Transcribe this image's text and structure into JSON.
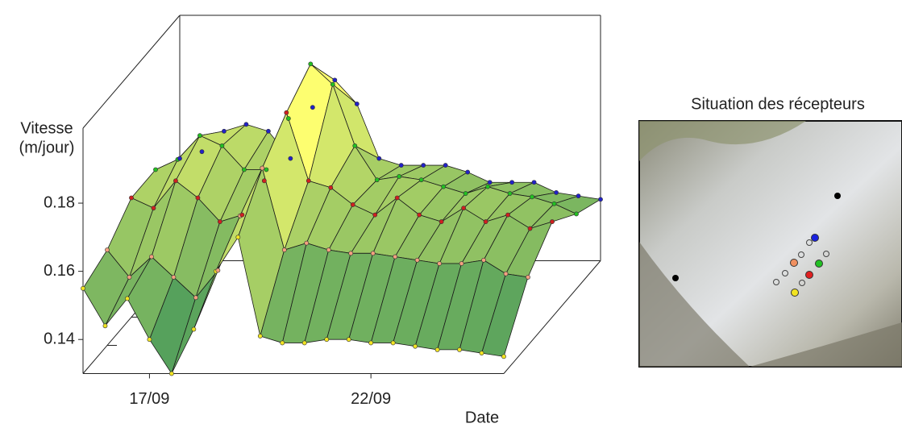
{
  "chart_data": [
    {
      "type": "surface3d",
      "ylabel": [
        "Vitesse",
        "(m/jour)"
      ],
      "xlabel": "Date",
      "categories": [
        null,
        null,
        null,
        "17/09",
        null,
        null,
        null,
        null,
        null,
        null,
        null,
        null,
        null,
        "22/09",
        null,
        null,
        null,
        null,
        null,
        null
      ],
      "ylim": [
        0.13,
        0.202
      ],
      "yticks": [
        0.14,
        0.16,
        0.18
      ],
      "colormap": [
        "#2e8b57",
        "#ffff70"
      ],
      "series": [
        {
          "color": "#f2e422",
          "values": [
            0.155,
            0.144,
            0.152,
            0.14,
            0.13,
            0.143,
            0.16,
            0.17,
            0.141,
            0.139,
            0.139,
            0.14,
            0.14,
            0.139,
            0.139,
            0.138,
            0.137,
            0.137,
            0.136,
            0.135
          ]
        },
        {
          "color": "#f4a080",
          "values": [
            0.158,
            0.15,
            0.156,
            0.15,
            0.144,
            0.152,
            0.168,
            0.182,
            0.158,
            0.16,
            0.158,
            0.157,
            0.157,
            0.156,
            0.155,
            0.154,
            0.154,
            0.155,
            0.151,
            0.15
          ]
        },
        {
          "color": "#d02020",
          "values": [
            0.165,
            0.162,
            0.17,
            0.165,
            0.158,
            0.16,
            0.17,
            0.19,
            0.17,
            0.168,
            0.163,
            0.16,
            0.165,
            0.16,
            0.158,
            0.162,
            0.158,
            0.16,
            0.156,
            0.158
          ]
        },
        {
          "color": "#22c022",
          "values": [
            0.165,
            0.168,
            0.175,
            0.172,
            0.165,
            0.165,
            0.18,
            0.196,
            0.19,
            0.172,
            0.162,
            0.163,
            0.162,
            0.16,
            0.158,
            0.16,
            0.158,
            0.157,
            0.155,
            0.152
          ]
        },
        {
          "color": "#2222c8",
          "values": [
            0.16,
            0.162,
            0.168,
            0.17,
            0.168,
            0.16,
            0.175,
            0.183,
            0.176,
            0.16,
            0.158,
            0.158,
            0.158,
            0.156,
            0.153,
            0.153,
            0.153,
            0.15,
            0.149,
            0.148
          ]
        }
      ]
    },
    {
      "type": "map",
      "title": "Situation des récepteurs"
    }
  ]
}
